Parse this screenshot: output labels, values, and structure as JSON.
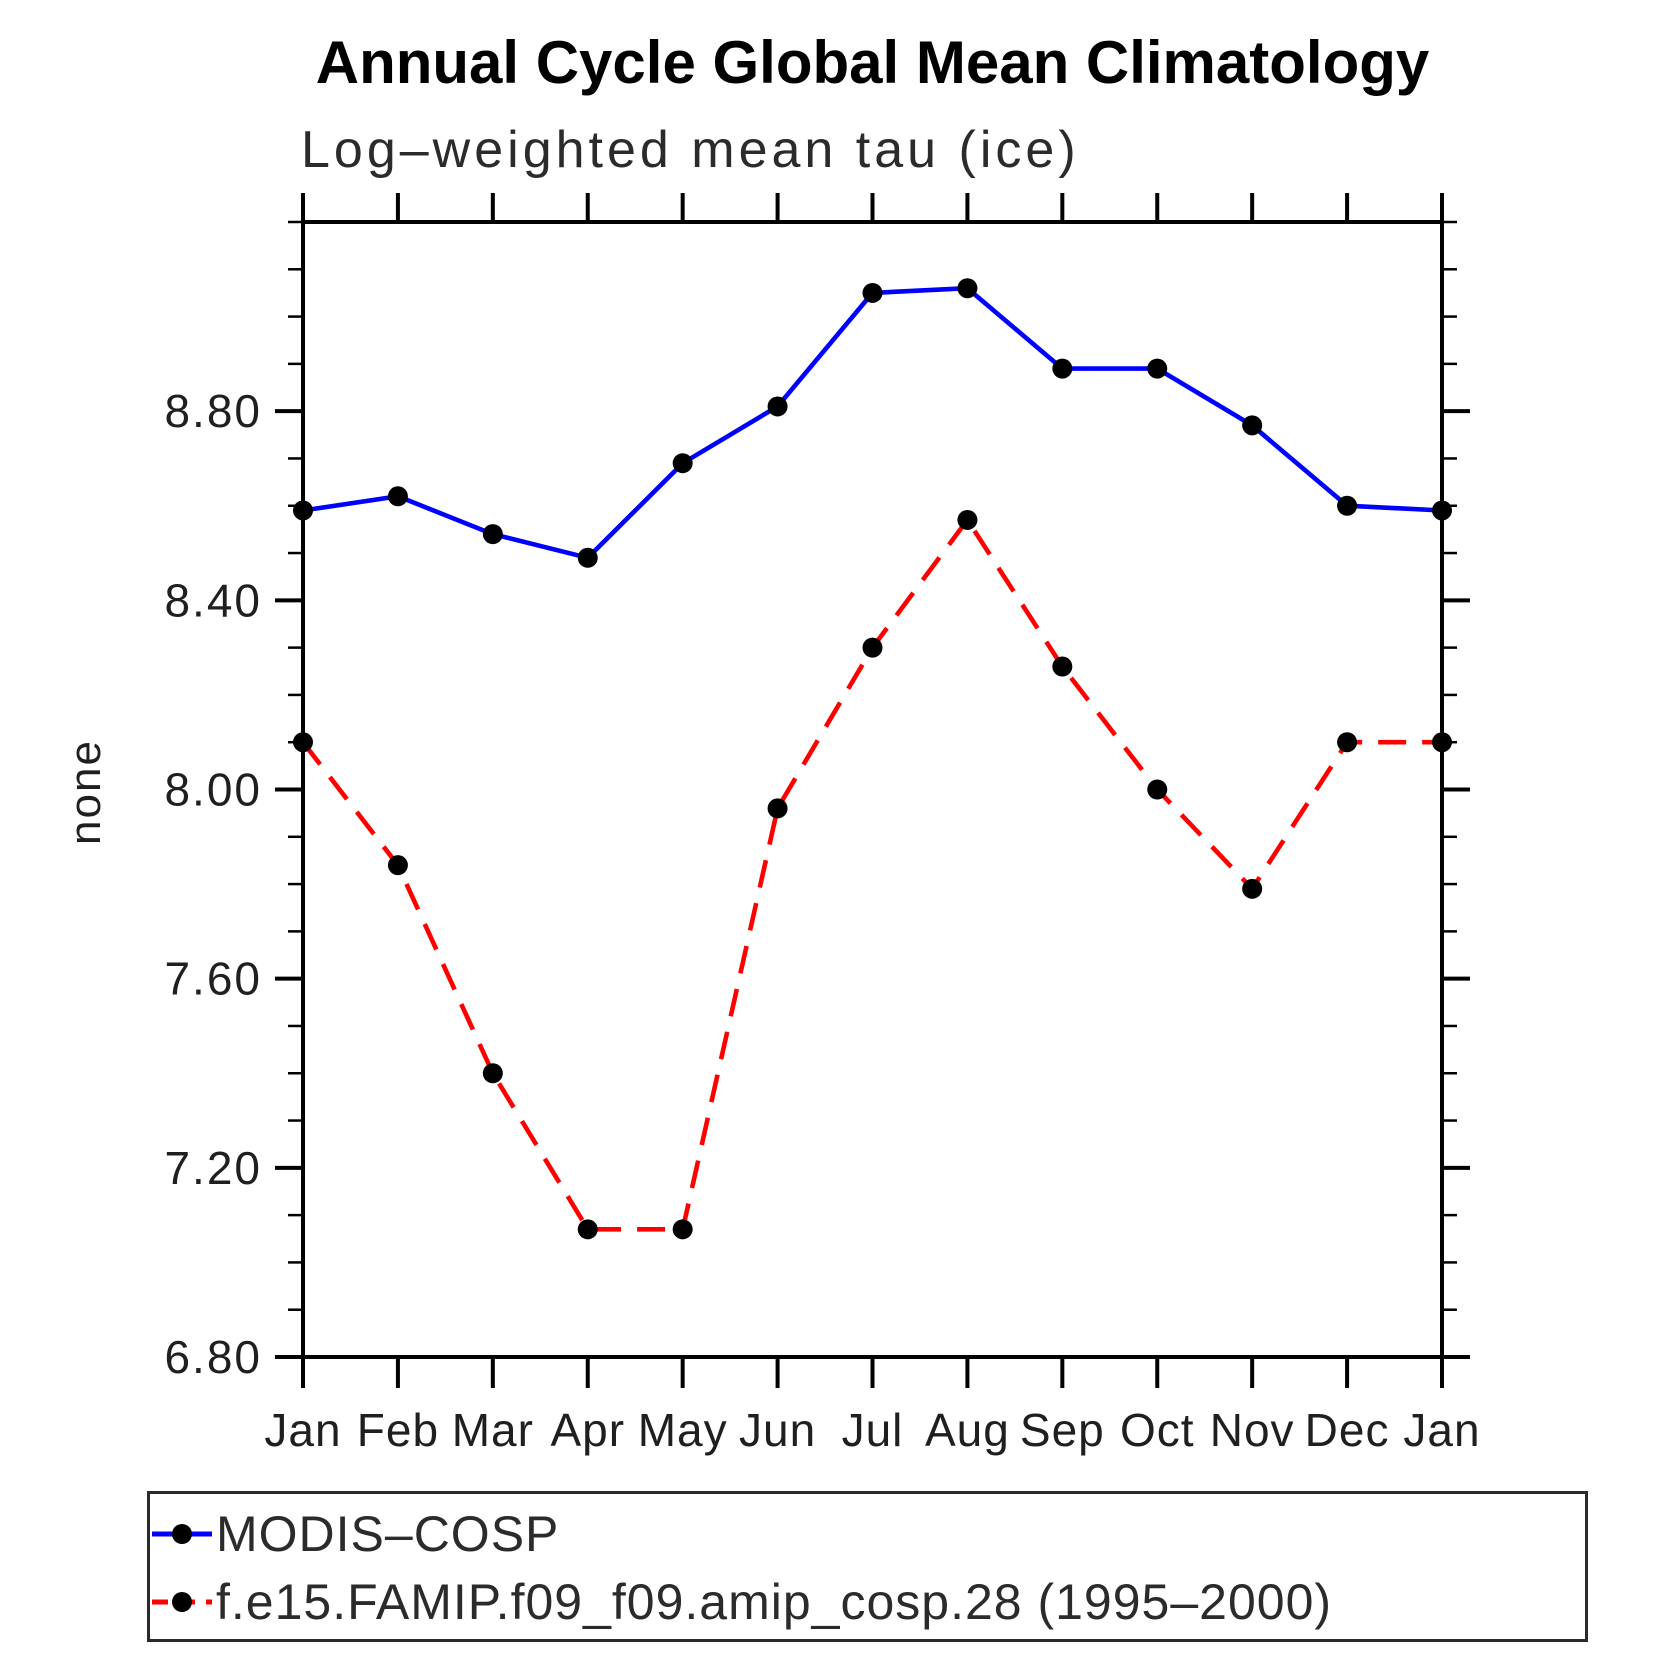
{
  "title": "Annual Cycle Global Mean Climatology",
  "subtitle": "Log–weighted mean tau (ice)",
  "y_axis": {
    "label": "none",
    "tick_labels": [
      "8.80",
      "8.40",
      "8.00",
      "7.60",
      "7.20",
      "6.80"
    ]
  },
  "x_axis": {
    "tick_labels": [
      "Jan",
      "Feb",
      "Mar",
      "Apr",
      "May",
      "Jun",
      "Jul",
      "Aug",
      "Sep",
      "Oct",
      "Nov",
      "Dec",
      "Jan"
    ]
  },
  "legend": {
    "items": [
      {
        "label": "MODIS–COSP",
        "color": "#0000ff",
        "line_style": "solid",
        "marker": "filled-circle"
      },
      {
        "label": "f.e15.FAMIP.f09_f09.amip_cosp.28 (1995–2000)",
        "color": "#ff0000",
        "line_style": "dashed",
        "marker": "filled-circle"
      }
    ]
  },
  "colors": {
    "series1": "#0000ff",
    "series2": "#ff0000",
    "marker": "#000000",
    "axis": "#000000"
  },
  "chart_data": {
    "type": "line",
    "title": "Annual Cycle Global Mean Climatology",
    "subtitle": "Log–weighted mean tau (ice)",
    "ylabel": "none",
    "categories": [
      "Jan",
      "Feb",
      "Mar",
      "Apr",
      "May",
      "Jun",
      "Jul",
      "Aug",
      "Sep",
      "Oct",
      "Nov",
      "Dec",
      "Jan"
    ],
    "series": [
      {
        "name": "MODIS–COSP",
        "color": "#0000ff",
        "line_style": "solid",
        "marker": "filled-circle",
        "values": [
          8.59,
          8.62,
          8.54,
          8.49,
          8.69,
          8.81,
          9.05,
          9.06,
          8.89,
          8.89,
          8.77,
          8.6,
          8.59
        ]
      },
      {
        "name": "f.e15.FAMIP.f09_f09.amip_cosp.28 (1995–2000)",
        "color": "#ff0000",
        "line_style": "dashed",
        "marker": "filled-circle",
        "values": [
          8.1,
          7.84,
          7.4,
          7.07,
          7.07,
          7.96,
          8.3,
          8.57,
          8.26,
          8.0,
          7.79,
          8.1,
          8.1
        ]
      }
    ],
    "ylim": [
      6.8,
      9.2
    ],
    "yticks_major": [
      6.8,
      7.2,
      7.6,
      8.0,
      8.4,
      8.8
    ],
    "ytick_minor_step": 0.1,
    "grid": false,
    "legend_position": "bottom-left-box"
  }
}
